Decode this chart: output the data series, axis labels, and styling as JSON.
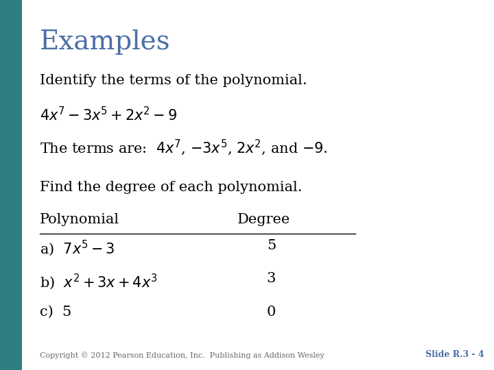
{
  "title": "Examples",
  "title_color": "#4a6fa5",
  "title_fontsize": 28,
  "bg_color": "#ffffff",
  "left_bar_color": "#2e7f7f",
  "left_bar_width": 0.045,
  "body_text_color": "#000000",
  "body_fontsize": 15,
  "copyright_text": "Copyright © 2012 Pearson Education, Inc.  Publishing as Addison Wesley",
  "slide_label": "Slide R.3 - 4",
  "slide_label_color": "#4a6fa5",
  "footer_fontsize": 8
}
